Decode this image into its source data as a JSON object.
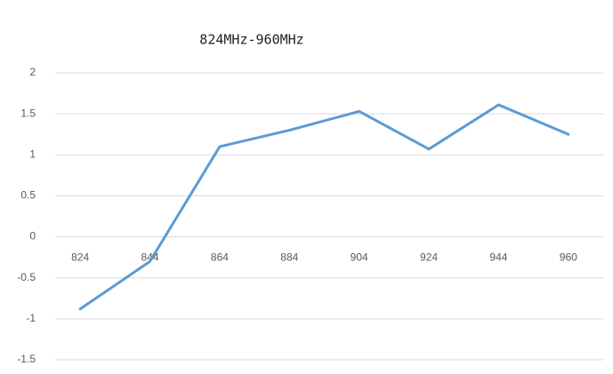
{
  "chart_data": {
    "type": "line",
    "title": "824MHz-960MHz",
    "categories": [
      "824",
      "844",
      "864",
      "884",
      "904",
      "924",
      "944",
      "960"
    ],
    "series": [
      {
        "name": "Series1",
        "color": "#5b9bd5",
        "values": [
          -0.88,
          -0.3,
          1.1,
          1.3,
          1.53,
          1.07,
          1.61,
          1.25
        ]
      }
    ],
    "ylim": [
      -1.5,
      2
    ],
    "yticks": [
      -1.5,
      -1,
      -0.5,
      0,
      0.5,
      1,
      1.5,
      2
    ],
    "grid": true
  }
}
